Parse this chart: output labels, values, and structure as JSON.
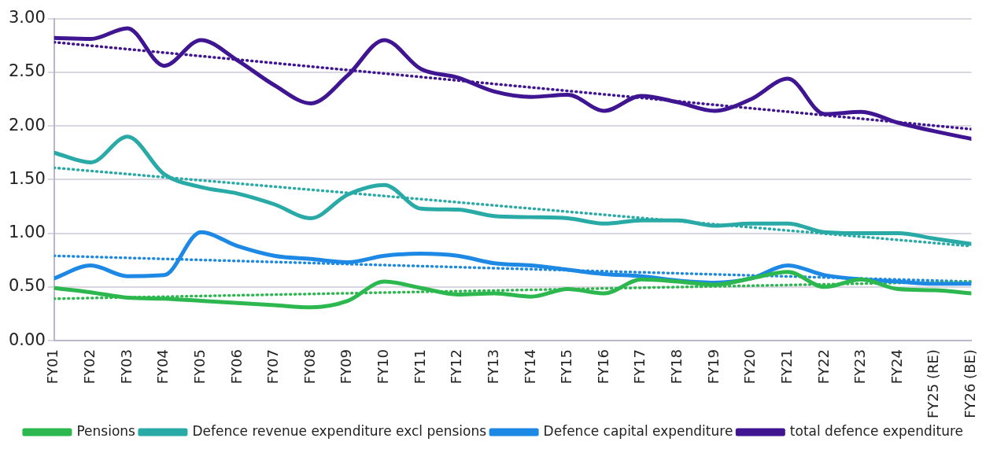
{
  "chart_data": {
    "type": "line",
    "categories": [
      "FY01",
      "FY02",
      "FY03",
      "FY04",
      "FY05",
      "FY06",
      "FY07",
      "FY08",
      "FY09",
      "FY10",
      "FY11",
      "FY12",
      "FY13",
      "FY14",
      "FY15",
      "FY16",
      "FY17",
      "FY18",
      "FY19",
      "FY20",
      "FY21",
      "FY22",
      "FY23",
      "FY24",
      "FY25 (RE)",
      "FY26 (BE)"
    ],
    "series": [
      {
        "name": "Pensions",
        "color": "#2db84f",
        "values": [
          0.49,
          0.45,
          0.4,
          0.39,
          0.37,
          0.35,
          0.33,
          0.31,
          0.37,
          0.55,
          0.49,
          0.43,
          0.44,
          0.41,
          0.48,
          0.44,
          0.57,
          0.55,
          0.52,
          0.58,
          0.64,
          0.5,
          0.57,
          0.48,
          0.47,
          0.44
        ]
      },
      {
        "name": "Defence revenue expenditure excl pensions",
        "color": "#2aaaa6",
        "values": [
          1.75,
          1.66,
          1.9,
          1.55,
          1.43,
          1.37,
          1.27,
          1.14,
          1.36,
          1.45,
          1.23,
          1.22,
          1.16,
          1.15,
          1.14,
          1.09,
          1.12,
          1.12,
          1.07,
          1.09,
          1.09,
          1.01,
          1.0,
          1.0,
          0.95,
          0.9
        ]
      },
      {
        "name": "Defence capital expenditure",
        "color": "#1e88e5",
        "values": [
          0.58,
          0.7,
          0.6,
          0.61,
          1.01,
          0.88,
          0.79,
          0.76,
          0.73,
          0.79,
          0.81,
          0.79,
          0.72,
          0.7,
          0.66,
          0.62,
          0.6,
          0.56,
          0.54,
          0.58,
          0.7,
          0.61,
          0.57,
          0.55,
          0.53,
          0.53
        ]
      },
      {
        "name": "total defence expenditure",
        "color": "#3f1591",
        "values": [
          2.82,
          2.81,
          2.91,
          2.56,
          2.8,
          2.61,
          2.38,
          2.21,
          2.47,
          2.8,
          2.53,
          2.45,
          2.32,
          2.27,
          2.29,
          2.14,
          2.28,
          2.22,
          2.14,
          2.25,
          2.44,
          2.11,
          2.13,
          2.03,
          1.95,
          1.88
        ]
      },
      {
        "type": "line",
        "line_style": "dotted",
        "color": "#2db84f",
        "x": [
          "FY01",
          "FY26 (BE)"
        ],
        "values": [
          0.39,
          0.55
        ]
      },
      {
        "type": "line",
        "line_style": "dotted",
        "color": "#2aaaa6",
        "x": [
          "FY01",
          "FY26 (BE)"
        ],
        "values": [
          1.61,
          0.88
        ]
      },
      {
        "type": "line",
        "line_style": "dotted",
        "color": "#1e88e5",
        "x": [
          "FY01",
          "FY26 (BE)"
        ],
        "values": [
          0.79,
          0.55
        ]
      },
      {
        "type": "line",
        "line_style": "dotted",
        "color": "#3f1591",
        "x": [
          "FY01",
          "FY26 (BE)"
        ],
        "values": [
          2.78,
          1.97
        ]
      }
    ],
    "ylim": [
      0,
      3
    ],
    "yticks": [
      {
        "value": 0,
        "label": "0.00"
      },
      {
        "value": 0.5,
        "label": "0.50"
      },
      {
        "value": 1,
        "label": "1.00"
      },
      {
        "value": 1.5,
        "label": "1.50"
      },
      {
        "value": 2,
        "label": "2.00"
      },
      {
        "value": 2.5,
        "label": "2.50"
      },
      {
        "value": 3,
        "label": "3.00"
      }
    ],
    "grid": "y",
    "legend": "bottom",
    "marker": "none",
    "line_style": "solid"
  }
}
